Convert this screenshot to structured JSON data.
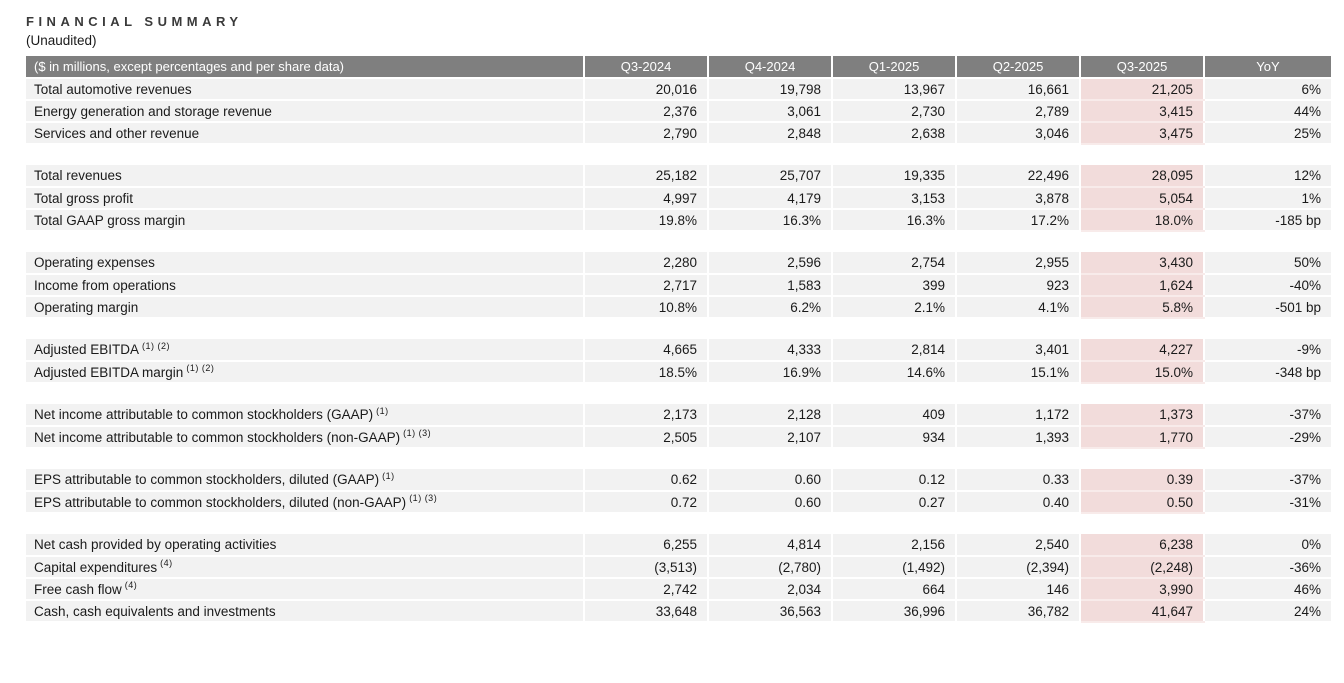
{
  "page": {
    "title": "FINANCIAL SUMMARY",
    "subtitle": "(Unaudited)"
  },
  "colors": {
    "header_bg": "#7f7f7f",
    "header_text": "#ffffff",
    "row_bg": "#f2f2f2",
    "highlight_bg": "#f2dcdb",
    "highlight_separator": "#f8ebea",
    "text": "#1a1a1a"
  },
  "table": {
    "label_header": "($ in millions, except percentages and per share data)",
    "columns": [
      "Q3-2024",
      "Q4-2024",
      "Q1-2025",
      "Q2-2025",
      "Q3-2025",
      "YoY"
    ],
    "highlight_column": "Q3-2025",
    "highlight_column_index": 4,
    "groups": [
      {
        "rows": [
          {
            "label": "Total automotive revenues",
            "sup": "",
            "values": [
              "20,016",
              "19,798",
              "13,967",
              "16,661",
              "21,205",
              "6%"
            ]
          },
          {
            "label": "Energy generation and storage revenue",
            "sup": "",
            "values": [
              "2,376",
              "3,061",
              "2,730",
              "2,789",
              "3,415",
              "44%"
            ]
          },
          {
            "label": "Services and other revenue",
            "sup": "",
            "values": [
              "2,790",
              "2,848",
              "2,638",
              "3,046",
              "3,475",
              "25%"
            ]
          }
        ]
      },
      {
        "rows": [
          {
            "label": "Total revenues",
            "sup": "",
            "values": [
              "25,182",
              "25,707",
              "19,335",
              "22,496",
              "28,095",
              "12%"
            ]
          },
          {
            "label": "Total gross profit",
            "sup": "",
            "values": [
              "4,997",
              "4,179",
              "3,153",
              "3,878",
              "5,054",
              "1%"
            ]
          },
          {
            "label": "Total GAAP gross margin",
            "sup": "",
            "values": [
              "19.8%",
              "16.3%",
              "16.3%",
              "17.2%",
              "18.0%",
              "-185 bp"
            ]
          }
        ]
      },
      {
        "rows": [
          {
            "label": "Operating expenses",
            "sup": "",
            "values": [
              "2,280",
              "2,596",
              "2,754",
              "2,955",
              "3,430",
              "50%"
            ]
          },
          {
            "label": "Income from operations",
            "sup": "",
            "values": [
              "2,717",
              "1,583",
              "399",
              "923",
              "1,624",
              "-40%"
            ]
          },
          {
            "label": "Operating margin",
            "sup": "",
            "values": [
              "10.8%",
              "6.2%",
              "2.1%",
              "4.1%",
              "5.8%",
              "-501 bp"
            ]
          }
        ]
      },
      {
        "rows": [
          {
            "label": "Adjusted EBITDA",
            "sup": "(1) (2)",
            "values": [
              "4,665",
              "4,333",
              "2,814",
              "3,401",
              "4,227",
              "-9%"
            ]
          },
          {
            "label": "Adjusted EBITDA margin",
            "sup": "(1) (2)",
            "values": [
              "18.5%",
              "16.9%",
              "14.6%",
              "15.1%",
              "15.0%",
              "-348 bp"
            ]
          }
        ]
      },
      {
        "rows": [
          {
            "label": "Net income attributable to common stockholders (GAAP)",
            "sup": "(1)",
            "values": [
              "2,173",
              "2,128",
              "409",
              "1,172",
              "1,373",
              "-37%"
            ]
          },
          {
            "label": "Net income attributable to common stockholders (non-GAAP)",
            "sup": "(1) (3)",
            "values": [
              "2,505",
              "2,107",
              "934",
              "1,393",
              "1,770",
              "-29%"
            ]
          }
        ]
      },
      {
        "rows": [
          {
            "label": "EPS attributable to common stockholders, diluted (GAAP)",
            "sup": "(1)",
            "values": [
              "0.62",
              "0.60",
              "0.12",
              "0.33",
              "0.39",
              "-37%"
            ]
          },
          {
            "label": "EPS attributable to common stockholders, diluted (non-GAAP)",
            "sup": "(1) (3)",
            "values": [
              "0.72",
              "0.60",
              "0.27",
              "0.40",
              "0.50",
              "-31%"
            ]
          }
        ]
      },
      {
        "rows": [
          {
            "label": "Net cash provided by operating activities",
            "sup": "",
            "values": [
              "6,255",
              "4,814",
              "2,156",
              "2,540",
              "6,238",
              "0%"
            ]
          },
          {
            "label": "Capital expenditures",
            "sup": "(4)",
            "values": [
              "(3,513)",
              "(2,780)",
              "(1,492)",
              "(2,394)",
              "(2,248)",
              "-36%"
            ]
          },
          {
            "label": "Free cash flow",
            "sup": "(4)",
            "values": [
              "2,742",
              "2,034",
              "664",
              "146",
              "3,990",
              "46%"
            ]
          },
          {
            "label": "Cash, cash equivalents and investments",
            "sup": "",
            "values": [
              "33,648",
              "36,563",
              "36,996",
              "36,782",
              "41,647",
              "24%"
            ]
          }
        ]
      }
    ]
  }
}
